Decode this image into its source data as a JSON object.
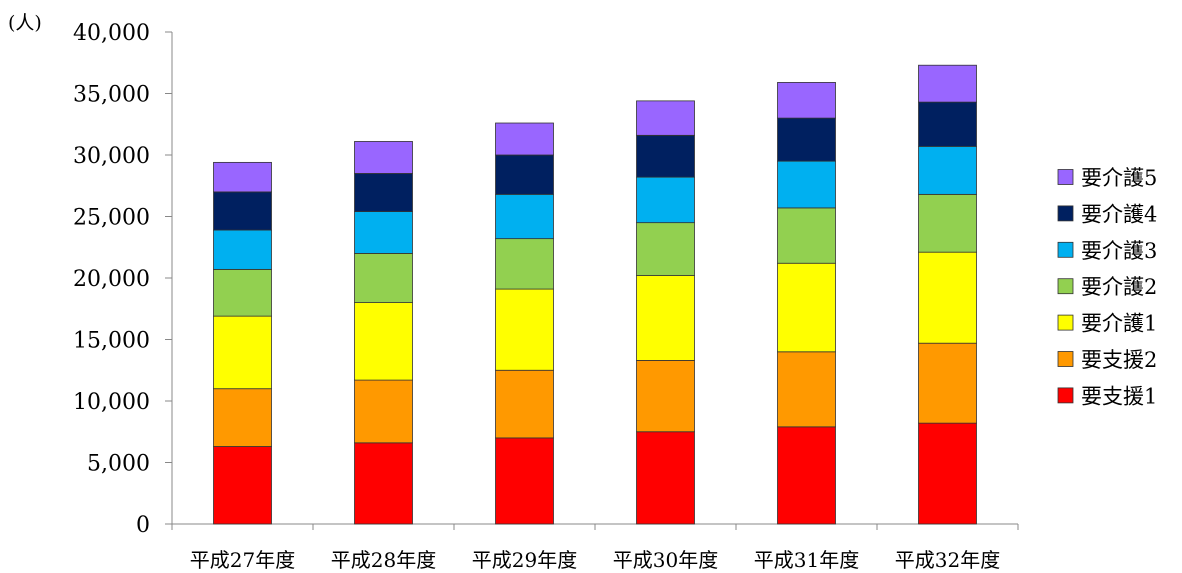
{
  "chart_data": {
    "type": "bar",
    "stacked": true,
    "unit_label": "(人)",
    "categories": [
      "平成27年度",
      "平成28年度",
      "平成29年度",
      "平成30年度",
      "平成31年度",
      "平成32年度"
    ],
    "series": [
      {
        "name": "要支援1",
        "color": "#ff0000",
        "values": [
          6300,
          6600,
          7000,
          7500,
          7900,
          8200
        ]
      },
      {
        "name": "要支援2",
        "color": "#ff9900",
        "values": [
          4700,
          5100,
          5500,
          5800,
          6100,
          6500
        ]
      },
      {
        "name": "要介護1",
        "color": "#ffff00",
        "values": [
          5900,
          6300,
          6600,
          6900,
          7200,
          7400
        ]
      },
      {
        "name": "要介護2",
        "color": "#92d050",
        "values": [
          3800,
          4000,
          4100,
          4300,
          4500,
          4700
        ]
      },
      {
        "name": "要介護3",
        "color": "#00b0f0",
        "values": [
          3200,
          3400,
          3600,
          3700,
          3800,
          3900
        ]
      },
      {
        "name": "要介護4",
        "color": "#002060",
        "values": [
          3100,
          3100,
          3200,
          3400,
          3500,
          3600
        ]
      },
      {
        "name": "要介護5",
        "color": "#9966ff",
        "values": [
          2400,
          2600,
          2600,
          2800,
          2900,
          3000
        ]
      }
    ],
    "ylim": [
      0,
      40000
    ],
    "yticks": [
      0,
      5000,
      10000,
      15000,
      20000,
      25000,
      30000,
      35000,
      40000
    ],
    "ytick_labels": [
      "0",
      "5,000",
      "10,000",
      "15,000",
      "20,000",
      "25,000",
      "30,000",
      "35,000",
      "40,000"
    ],
    "grid": false,
    "legend_position": "right",
    "legend_order": [
      "要介護5",
      "要介護4",
      "要介護3",
      "要介護2",
      "要介護1",
      "要支援2",
      "要支援1"
    ]
  }
}
